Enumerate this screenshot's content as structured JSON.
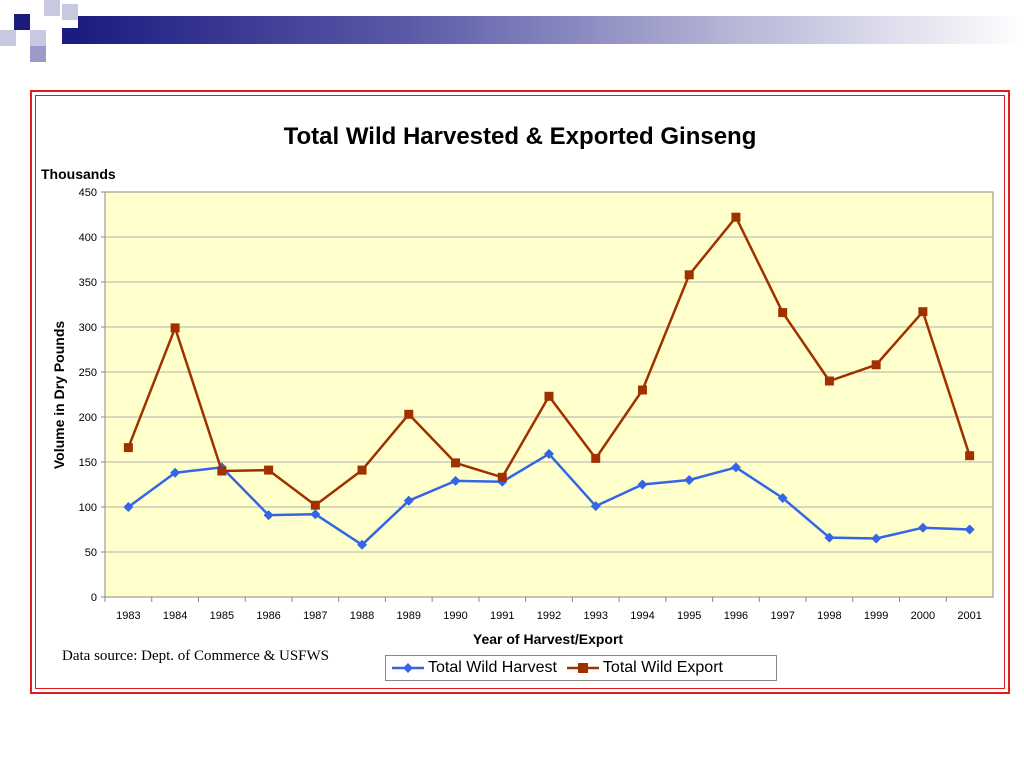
{
  "slide": {
    "source_note": "Data source: Dept. of Commerce & USFWS"
  },
  "colors": {
    "accent_navy": "#1c1c80",
    "frame_red": "#e02020",
    "plot_bg": "#ffffcc",
    "harvest": "#3366e6",
    "export": "#a03000"
  },
  "chart_data": {
    "type": "line",
    "title": "Total Wild Harvested & Exported Ginseng",
    "units_label": "Thousands",
    "ylabel": "Volume in Dry Pounds",
    "xlabel": "Year of Harvest/Export",
    "ylim": [
      0,
      450
    ],
    "yticks": [
      0,
      50,
      100,
      150,
      200,
      250,
      300,
      350,
      400,
      450
    ],
    "grid": true,
    "legend_position": "bottom",
    "categories": [
      "1983",
      "1984",
      "1985",
      "1986",
      "1987",
      "1988",
      "1989",
      "1990",
      "1991",
      "1992",
      "1993",
      "1994",
      "1995",
      "1996",
      "1997",
      "1998",
      "1999",
      "2000",
      "2001"
    ],
    "series": [
      {
        "name": "Total Wild Harvest",
        "marker": "diamond",
        "values": [
          100,
          138,
          144,
          91,
          92,
          58,
          107,
          129,
          128,
          159,
          101,
          125,
          130,
          144,
          110,
          66,
          65,
          77,
          75
        ]
      },
      {
        "name": "Total Wild Export",
        "marker": "square",
        "values": [
          166,
          299,
          140,
          141,
          102,
          141,
          203,
          149,
          133,
          223,
          154,
          230,
          358,
          422,
          316,
          240,
          258,
          317,
          157
        ]
      }
    ]
  }
}
